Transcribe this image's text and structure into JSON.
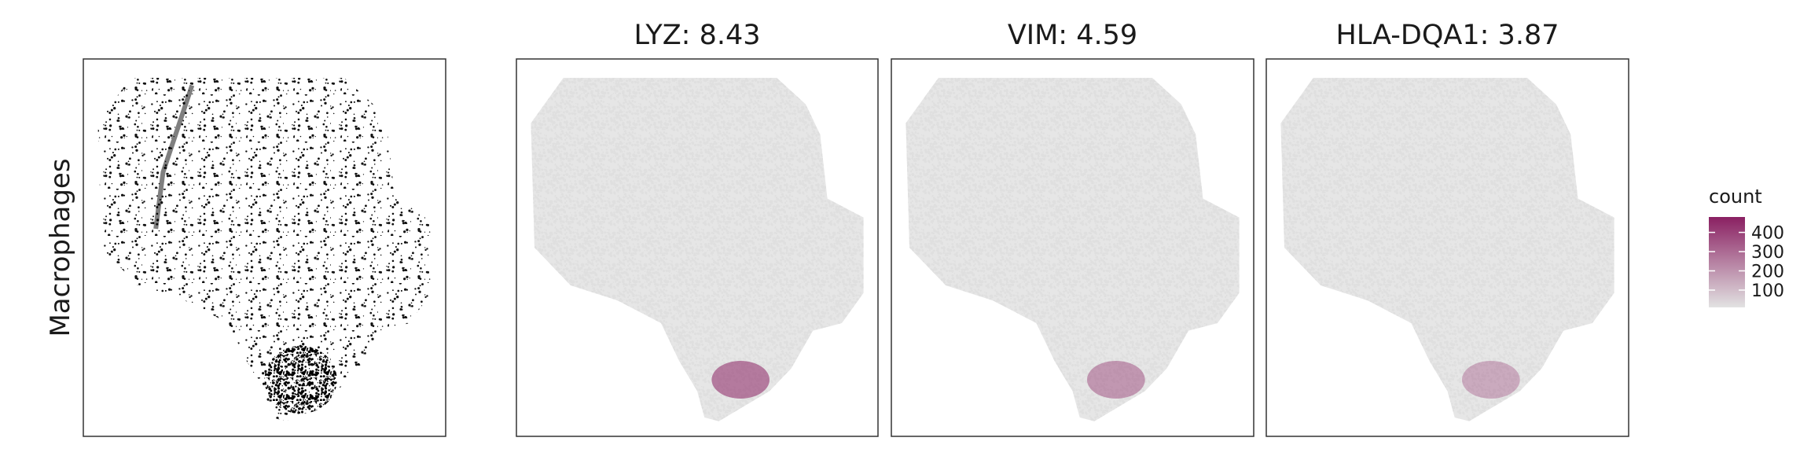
{
  "chart_data": [
    {
      "type": "spatial",
      "ylabel": "Macrophages"
    },
    {
      "type": "density",
      "title": "LYZ: 8.43"
    },
    {
      "type": "density",
      "title": "VIM: 4.59"
    },
    {
      "type": "density",
      "title": "HLA-DQA1: 3.87"
    }
  ],
  "colorbar": {
    "title": "count",
    "lim": [
      10,
      480
    ],
    "ticks": [
      100,
      200,
      300,
      400
    ],
    "colors": [
      "#e2e2e2",
      "#8a2062"
    ]
  }
}
